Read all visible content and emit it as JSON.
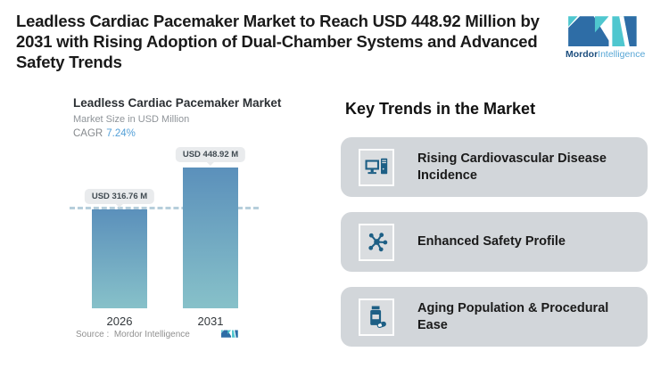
{
  "header": {
    "title_lines": [
      "Leadless Cardiac Pacemaker Market to Reach USD 448.92 Million by",
      "2031 with Rising Adoption of Dual-Chamber Systems and Advanced",
      "Safety Trends"
    ],
    "logo": {
      "brand_bold": "Mordor",
      "brand_light": "Intelligence"
    }
  },
  "chart": {
    "title": "Leadless Cardiac Pacemaker Market",
    "subtitle": "Market Size in USD Million",
    "cagr_label": "CAGR",
    "cagr_value": "7.24%",
    "source_prefix": "Source :",
    "source_name": "Mordor Intelligence"
  },
  "chart_data": {
    "type": "bar",
    "title": "Leadless Cardiac Pacemaker Market",
    "ylabel": "Market Size in USD Million",
    "unit": "USD Million",
    "cagr_percent": 7.24,
    "categories": [
      "2026",
      "2031"
    ],
    "values": [
      316.76,
      448.92
    ],
    "value_labels": [
      "USD 316.76 M",
      "USD 448.92 M"
    ],
    "reference_line_value": 316.76,
    "grid": "off",
    "legend": "none"
  },
  "key_trends": {
    "heading": "Key Trends in the Market",
    "cards": [
      {
        "icon": "desktop-computer-icon",
        "label": "Rising Cardiovascular Disease Incidence"
      },
      {
        "icon": "molecule-icon",
        "label": "Enhanced Safety Profile"
      },
      {
        "icon": "medicine-bottle-icon",
        "label": "Aging Population & Procedural Ease"
      }
    ]
  },
  "colors": {
    "logo_dark_blue": "#2e6da6",
    "logo_teal": "#4fc7cf",
    "brand_text_dark": "#1c4e7e",
    "brand_text_light": "#58a7d6",
    "icon_blue": "#1d5f85",
    "bar_gradient_top": "#5b90bb",
    "bar_gradient_bottom": "#87c1c9",
    "cagr_value_blue": "#54a0d8",
    "card_background": "#d2d6da",
    "dashed_line": "#b6cedb"
  }
}
